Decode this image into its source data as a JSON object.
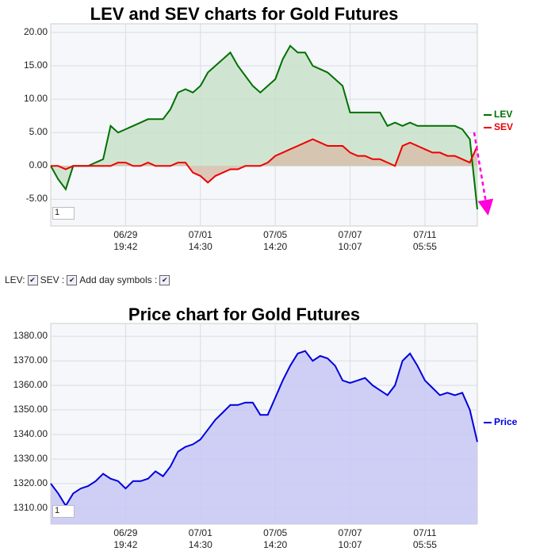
{
  "chart_data": [
    {
      "type": "line",
      "title": "LEV and SEV charts for Gold Futures",
      "input_value": "1",
      "categories": [
        null,
        null,
        null,
        null,
        null,
        null,
        null,
        null,
        null,
        null,
        "06/29 19:42",
        null,
        null,
        null,
        null,
        null,
        null,
        null,
        null,
        null,
        "07/01 14:30",
        null,
        null,
        null,
        null,
        null,
        null,
        null,
        null,
        null,
        "07/05 14:20",
        null,
        null,
        null,
        null,
        null,
        null,
        null,
        null,
        null,
        "07/07 10:07",
        null,
        null,
        null,
        null,
        null,
        null,
        null,
        null,
        null,
        "07/11 05:55",
        null,
        null,
        null,
        null,
        null,
        null,
        null
      ],
      "series": [
        {
          "name": "LEV",
          "color": "#007000",
          "fill": "#c9e2c9",
          "values": [
            0,
            -2,
            -3.5,
            0,
            0,
            0,
            0.5,
            1,
            6,
            5,
            5.5,
            6,
            6.5,
            7,
            7,
            7,
            8.5,
            11,
            11.5,
            11,
            12,
            14,
            15,
            16,
            17,
            15,
            13.5,
            12,
            11,
            12,
            13,
            16,
            18,
            17,
            17,
            15,
            14.5,
            14,
            13,
            12,
            8,
            8,
            8,
            8,
            8,
            6,
            6.5,
            6,
            6.5,
            6,
            6,
            6,
            6,
            6,
            6,
            5.5,
            4,
            -6.5
          ]
        },
        {
          "name": "SEV",
          "color": "#ee0000",
          "fill": "#d6c0ac",
          "values": [
            0,
            0,
            -0.5,
            0,
            0,
            0,
            0,
            0,
            0,
            0.5,
            0.5,
            0,
            0,
            0.5,
            0,
            0,
            0,
            0.5,
            0.5,
            -1,
            -1.5,
            -2.5,
            -1.5,
            -1,
            -0.5,
            -0.5,
            0,
            0,
            0,
            0.5,
            1.5,
            2,
            2.5,
            3,
            3.5,
            4,
            3.5,
            3,
            3,
            3,
            2,
            1.5,
            1.5,
            1,
            1,
            0.5,
            0,
            3,
            3.5,
            3,
            2.5,
            2,
            2,
            1.5,
            1.5,
            1,
            0.5,
            3
          ]
        }
      ],
      "ylim": [
        -9,
        21.3
      ],
      "yticks": [
        {
          "value": -5,
          "label": "-5.00"
        },
        {
          "value": 0,
          "label": "0.00"
        },
        {
          "value": 5,
          "label": "5.00"
        },
        {
          "value": 10,
          "label": "10.00"
        },
        {
          "value": 15,
          "label": "15.00"
        },
        {
          "value": 20,
          "label": "20.00"
        }
      ],
      "grid": true
    },
    {
      "type": "line",
      "title": "Price chart for Gold Futures",
      "input_value": "1",
      "categories": [
        null,
        null,
        null,
        null,
        null,
        null,
        null,
        null,
        null,
        null,
        "06/29 19:42",
        null,
        null,
        null,
        null,
        null,
        null,
        null,
        null,
        null,
        "07/01 14:30",
        null,
        null,
        null,
        null,
        null,
        null,
        null,
        null,
        null,
        "07/05 14:20",
        null,
        null,
        null,
        null,
        null,
        null,
        null,
        null,
        null,
        "07/07 10:07",
        null,
        null,
        null,
        null,
        null,
        null,
        null,
        null,
        null,
        "07/11 05:55",
        null,
        null,
        null,
        null,
        null,
        null,
        null
      ],
      "series": [
        {
          "name": "Price",
          "color": "#0000dd",
          "fill": "#c8c8f4",
          "values": [
            1320,
            1316,
            1311,
            1316,
            1318,
            1319,
            1321,
            1324,
            1322,
            1321,
            1318,
            1321,
            1321,
            1322,
            1325,
            1323,
            1327,
            1333,
            1335,
            1336,
            1338,
            1342,
            1346,
            1349,
            1352,
            1352,
            1353,
            1353,
            1348,
            1348,
            1355,
            1362,
            1368,
            1373,
            1374,
            1370,
            1372,
            1371,
            1368,
            1362,
            1361,
            1362,
            1363,
            1360,
            1358,
            1356,
            1360,
            1370,
            1373,
            1368,
            1362,
            1359,
            1356,
            1357,
            1356,
            1357,
            1350,
            1337
          ]
        }
      ],
      "ylim": [
        1303.5,
        1385.2
      ],
      "yticks": [
        {
          "value": 1310,
          "label": "1310.00"
        },
        {
          "value": 1320,
          "label": "1320.00"
        },
        {
          "value": 1330,
          "label": "1330.00"
        },
        {
          "value": 1340,
          "label": "1340.00"
        },
        {
          "value": 1350,
          "label": "1350.00"
        },
        {
          "value": 1360,
          "label": "1360.00"
        },
        {
          "value": 1370,
          "label": "1370.00"
        },
        {
          "value": 1380,
          "label": "1380.00"
        }
      ],
      "grid": true
    }
  ],
  "controls": {
    "lev_label": "LEV:",
    "sev_label": "SEV :",
    "day_label": "Add day symbols :"
  }
}
